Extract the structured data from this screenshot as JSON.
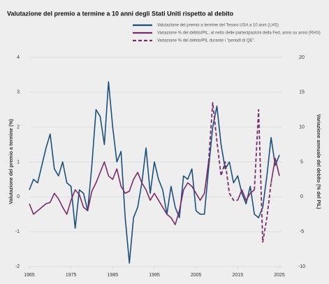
{
  "chart_data": {
    "type": "line",
    "title": "Valutazione del premio a termine a 10 anni degli Stati Uniti rispetto al debito",
    "ylabel": "Valutazione del premio a termine (%)",
    "y2label": "Variazione annuale del debito (% del PIL)",
    "x": [
      1965,
      1966,
      1967,
      1968,
      1969,
      1970,
      1971,
      1972,
      1973,
      1974,
      1975,
      1976,
      1977,
      1978,
      1979,
      1980,
      1981,
      1982,
      1983,
      1984,
      1985,
      1986,
      1987,
      1988,
      1989,
      1990,
      1991,
      1992,
      1993,
      1994,
      1995,
      1996,
      1997,
      1998,
      1999,
      2000,
      2001,
      2002,
      2003,
      2004,
      2005,
      2006,
      2007,
      2008,
      2009,
      2010,
      2011,
      2012,
      2013,
      2014,
      2015,
      2016,
      2017,
      2018,
      2019,
      2020,
      2021,
      2022,
      2023,
      2024,
      2025
    ],
    "xlim": [
      1965,
      2025
    ],
    "xticks": [
      1965,
      1975,
      1985,
      1995,
      2005,
      2015,
      2025
    ],
    "ylim": [
      -2,
      4
    ],
    "yticks": [
      -2,
      -1,
      0,
      1,
      2,
      3,
      4
    ],
    "y2lim": [
      -10,
      20
    ],
    "y2ticks": [
      -10,
      -5,
      0,
      5,
      10,
      15,
      20
    ],
    "grid": true,
    "series": [
      {
        "name": "Valutazione del premio a termine del Tesoro USA a 10 anni (LHS)",
        "color": "#1b4f7a",
        "style": "solid",
        "values": [
          0.2,
          0.5,
          0.4,
          0.9,
          1.4,
          1.8,
          0.8,
          0.6,
          1.0,
          0.4,
          0.3,
          -0.9,
          0.2,
          0.1,
          -0.4,
          0.9,
          2.5,
          2.3,
          1.5,
          3.3,
          2.0,
          1.0,
          1.3,
          -0.6,
          -1.9,
          -0.6,
          -0.3,
          0.4,
          1.4,
          0.1,
          1.0,
          0.5,
          0.2,
          -0.5,
          0.3,
          -0.3,
          -0.6,
          0.6,
          0.5,
          0.8,
          -0.4,
          -0.5,
          -0.5,
          0.8,
          2.0,
          2.6,
          1.5,
          0.8,
          1.0,
          0.4,
          0.6,
          0.1,
          -0.2,
          0.3,
          -0.5,
          -0.6,
          -0.3,
          0.6,
          1.7,
          0.9,
          1.2
        ]
      },
      {
        "name": "Variazione % del debito/PIL, al netto delle partecipazioni della Fed, anno su anno (RHS)",
        "color": "#7b2a6b",
        "style": "solid",
        "axis": "y2",
        "values": [
          -1,
          -2.5,
          -2,
          -1.5,
          -1,
          -0.8,
          0.5,
          -0.3,
          -1.5,
          -2.5,
          -0.5,
          1,
          0.3,
          -1.5,
          -2,
          0.8,
          2,
          3.5,
          5,
          3,
          2.5,
          4,
          1.5,
          0.5,
          0.8,
          2.5,
          3.5,
          2,
          1,
          -0.5,
          0.5,
          -0.5,
          -1.5,
          -2.5,
          -3,
          -4,
          -2,
          1,
          2,
          1.5,
          0.5,
          -0.5,
          0.5,
          5,
          null,
          null,
          null,
          null,
          null,
          null,
          -0.5,
          1,
          -0.5,
          0.5,
          1,
          null,
          null,
          null,
          2,
          5.5,
          3
        ]
      },
      {
        "name": "Variazione % del debito/PIL durante i \"periodi di QE\".",
        "color": "#7b2a6b",
        "style": "dashed",
        "axis": "y2",
        "values": [
          null,
          null,
          null,
          null,
          null,
          null,
          null,
          null,
          null,
          null,
          null,
          null,
          null,
          null,
          null,
          null,
          null,
          null,
          null,
          null,
          null,
          null,
          null,
          null,
          null,
          null,
          null,
          null,
          null,
          null,
          null,
          null,
          null,
          null,
          null,
          null,
          null,
          null,
          null,
          null,
          null,
          null,
          null,
          5,
          13.5,
          8,
          3,
          5,
          0.5,
          -0.5,
          -0.5,
          null,
          null,
          null,
          1,
          12.5,
          -6.5,
          -3,
          2,
          null,
          null
        ]
      }
    ]
  }
}
